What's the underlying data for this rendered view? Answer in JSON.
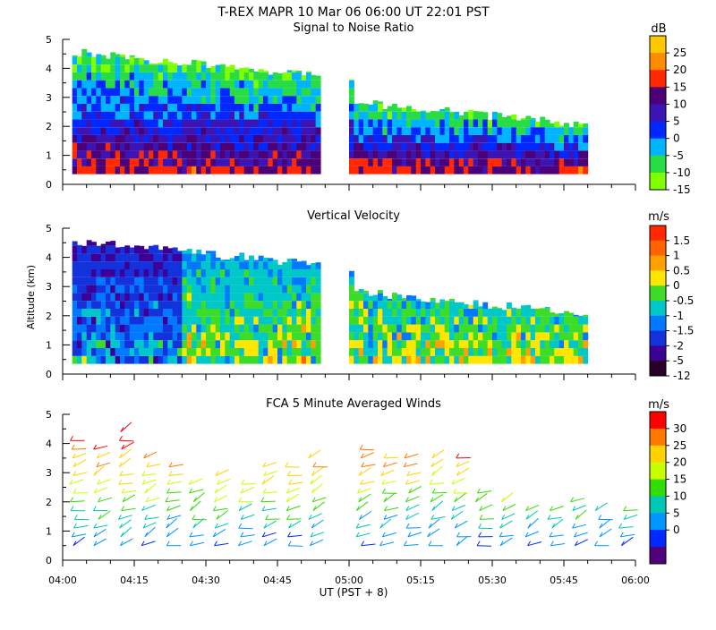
{
  "page": {
    "title": "T-REX   MAPR 10 Mar 06   06:00 UT   22:01   PST",
    "ylabel": "Altitude (km)",
    "xlabel": "UT  (PST + 8)"
  },
  "chart_data": [
    {
      "type": "heatmap",
      "title": "Signal to Noise Ratio",
      "unit": "dB",
      "xlim": [
        0,
        120
      ],
      "ylim": [
        0,
        5
      ],
      "x_ticks": [
        "04:00",
        "04:15",
        "04:30",
        "04:45",
        "05:00",
        "05:15",
        "05:30",
        "05:45",
        "06:00"
      ],
      "y_ticks": [
        "0",
        "1",
        "2",
        "3",
        "4",
        "5"
      ],
      "colorbar_labels": [
        "25",
        "20",
        "15",
        "10",
        "5",
        "0",
        "-5",
        "-10",
        "-15"
      ],
      "colorbar_colors": [
        "#ffc800",
        "#ff8c00",
        "#ff2800",
        "#4b0078",
        "#3c14b4",
        "#0028ff",
        "#00b4ff",
        "#28dc46",
        "#80ff00"
      ],
      "data_gap_minutes": [
        54,
        60
      ]
    },
    {
      "type": "heatmap",
      "title": "Vertical Velocity",
      "unit": "m/s",
      "xlim": [
        0,
        120
      ],
      "ylim": [
        0,
        5
      ],
      "x_ticks": [
        "04:00",
        "04:15",
        "04:30",
        "04:45",
        "05:00",
        "05:15",
        "05:30",
        "05:45",
        "06:00"
      ],
      "y_ticks": [
        "0",
        "1",
        "2",
        "3",
        "4",
        "5"
      ],
      "colorbar_labels": [
        "1.5",
        "1",
        "0.5",
        "0",
        "-0.5",
        "-1",
        "-1.5",
        "-2",
        "-5",
        "-12"
      ],
      "colorbar_colors": [
        "#ff2800",
        "#ff6400",
        "#ffa000",
        "#ffe600",
        "#3cdc28",
        "#00c8c8",
        "#0078ff",
        "#1432dc",
        "#3c0096",
        "#280028"
      ],
      "data_gap_minutes": [
        54,
        60
      ]
    },
    {
      "type": "scatter",
      "title": "FCA 5 Minute Averaged Winds",
      "unit": "m/s",
      "xlim": [
        0,
        120
      ],
      "ylim": [
        0,
        5
      ],
      "x_ticks": [
        "04:00",
        "04:15",
        "04:30",
        "04:45",
        "05:00",
        "05:15",
        "05:30",
        "05:45",
        "06:00"
      ],
      "y_ticks": [
        "0",
        "1",
        "2",
        "3",
        "4",
        "5"
      ],
      "colorbar_labels": [
        "30",
        "25",
        "20",
        "15",
        "10",
        "5",
        "0"
      ],
      "colorbar_colors": [
        "#ff0000",
        "#ff7800",
        "#ffd200",
        "#c8ff00",
        "#32dc00",
        "#00c8b4",
        "#0096ff",
        "#0028ff",
        "#500078"
      ],
      "profile_times_minutes": [
        2,
        7,
        12,
        17,
        22,
        27,
        32,
        37,
        42,
        47,
        52,
        62,
        67,
        72,
        77,
        82,
        87,
        92,
        97,
        102,
        107,
        112,
        117
      ],
      "max_altitude_km": [
        4.3,
        4.0,
        4.4,
        3.6,
        3.3,
        2.6,
        3.1,
        2.6,
        3.4,
        3.3,
        3.6,
        3.8,
        3.7,
        3.6,
        3.5,
        3.6,
        2.5,
        2.0,
        1.9,
        1.9,
        2.1,
        1.9,
        1.8
      ]
    }
  ]
}
